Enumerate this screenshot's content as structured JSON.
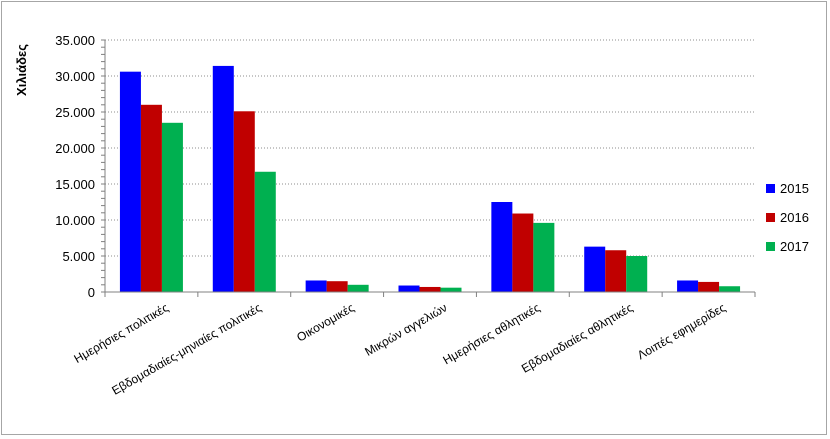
{
  "chart_data": {
    "type": "bar",
    "ylabel": "Χιλιάδες",
    "xlabel": "",
    "title": "",
    "ylim": [
      0,
      35000
    ],
    "ytick_step": 5000,
    "ytick_labels": [
      "0",
      "5.000",
      "10.000",
      "15.000",
      "20.000",
      "25.000",
      "30.000",
      "35.000"
    ],
    "grid": true,
    "legend_position": "right",
    "categories": [
      "Ημερήσιες πολιτικές",
      "Εβδομαδιαίες-μηνιαίες πολιτικές",
      "Οικονομικές",
      "Μικρών αγγελιών",
      "Ημερήσιες αθλητικές",
      "Εβδομαδιαίες αθλητικές",
      "Λοιπές εφημερίδες"
    ],
    "series": [
      {
        "name": "2015",
        "color": "#0000ff",
        "values": [
          30600,
          31400,
          1600,
          900,
          12500,
          6300,
          1600
        ]
      },
      {
        "name": "2016",
        "color": "#c00000",
        "values": [
          26000,
          25100,
          1500,
          700,
          10900,
          5800,
          1400
        ]
      },
      {
        "name": "2017",
        "color": "#00b050",
        "values": [
          23500,
          16700,
          1000,
          600,
          9600,
          5000,
          800
        ]
      }
    ]
  }
}
